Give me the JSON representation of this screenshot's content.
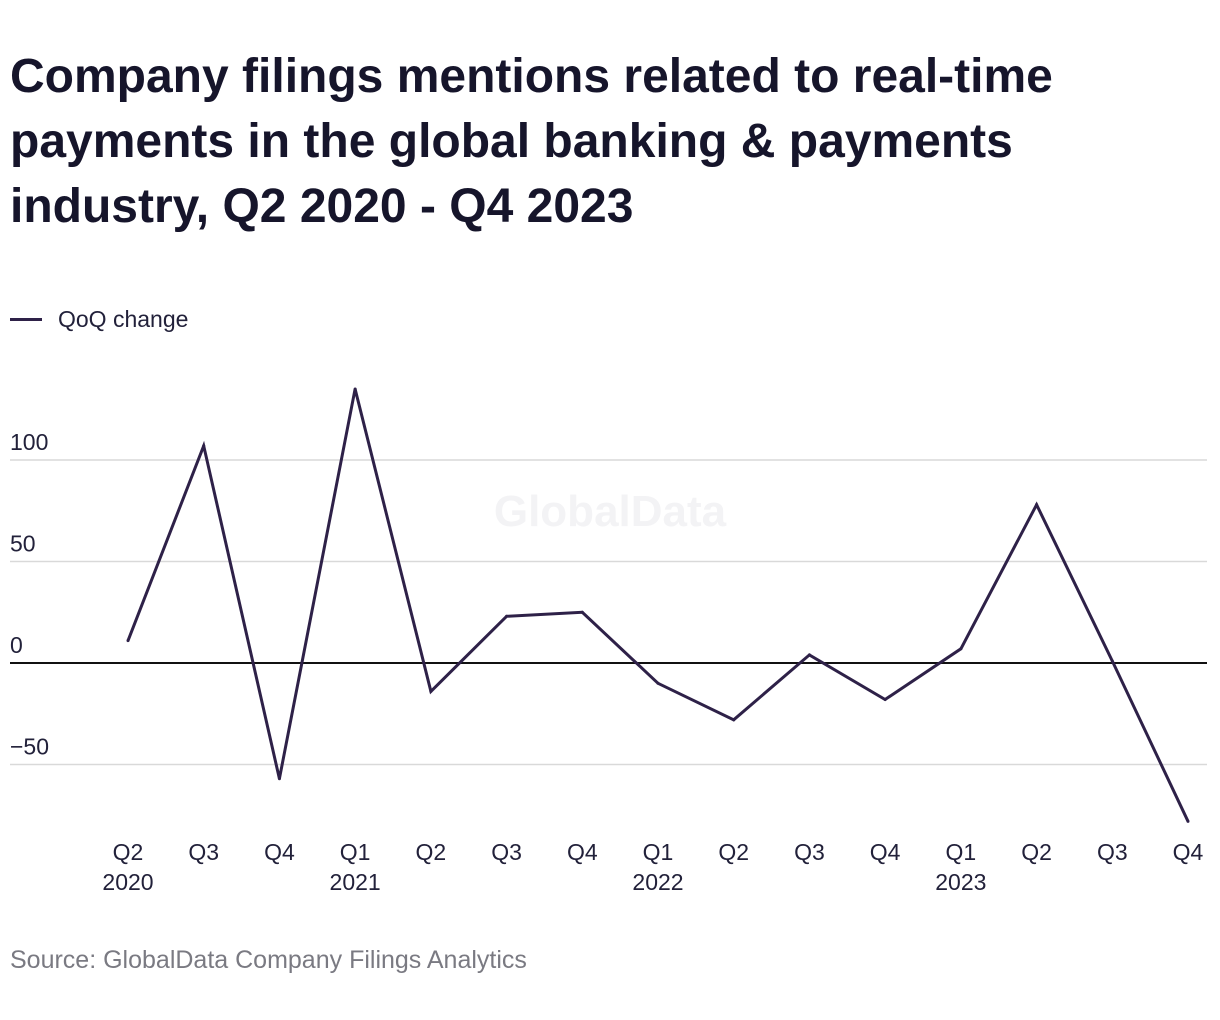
{
  "chart_data": {
    "type": "line",
    "title": "Company filings mentions related to real-time payments in the global banking & payments industry, Q2 2020 - Q4 2023",
    "source": "Source: GlobalData Company Filings Analytics",
    "watermark": "GlobalData",
    "categories": [
      "Q2 2020",
      "Q3 2020",
      "Q4 2020",
      "Q1 2021",
      "Q2 2021",
      "Q3 2021",
      "Q4 2021",
      "Q1 2022",
      "Q2 2022",
      "Q3 2022",
      "Q4 2022",
      "Q1 2023",
      "Q2 2023",
      "Q3 2023",
      "Q4 2023"
    ],
    "tick_labels": [
      {
        "q": "Q2",
        "year": "2020"
      },
      {
        "q": "Q3",
        "year": ""
      },
      {
        "q": "Q4",
        "year": ""
      },
      {
        "q": "Q1",
        "year": "2021"
      },
      {
        "q": "Q2",
        "year": ""
      },
      {
        "q": "Q3",
        "year": ""
      },
      {
        "q": "Q4",
        "year": ""
      },
      {
        "q": "Q1",
        "year": "2022"
      },
      {
        "q": "Q2",
        "year": ""
      },
      {
        "q": "Q3",
        "year": ""
      },
      {
        "q": "Q4",
        "year": ""
      },
      {
        "q": "Q1",
        "year": "2023"
      },
      {
        "q": "Q2",
        "year": ""
      },
      {
        "q": "Q3",
        "year": ""
      },
      {
        "q": "Q4",
        "year": ""
      }
    ],
    "series": [
      {
        "name": "QoQ change",
        "color": "#2e2148",
        "values": [
          11,
          107,
          -57,
          135,
          -14,
          23,
          25,
          -10,
          -28,
          4,
          -18,
          7,
          78,
          1,
          -78
        ]
      }
    ],
    "yticks": [
      {
        "value": 100,
        "label": "100"
      },
      {
        "value": 50,
        "label": "50"
      },
      {
        "value": 0,
        "label": "0"
      },
      {
        "value": -50,
        "label": "−50"
      }
    ],
    "ylim": [
      -85,
      145
    ],
    "grid": true,
    "legend_position": "top-left",
    "colors": {
      "line": "#2e2148",
      "grid": "#d9d9d9",
      "zero_line": "#111111"
    }
  }
}
